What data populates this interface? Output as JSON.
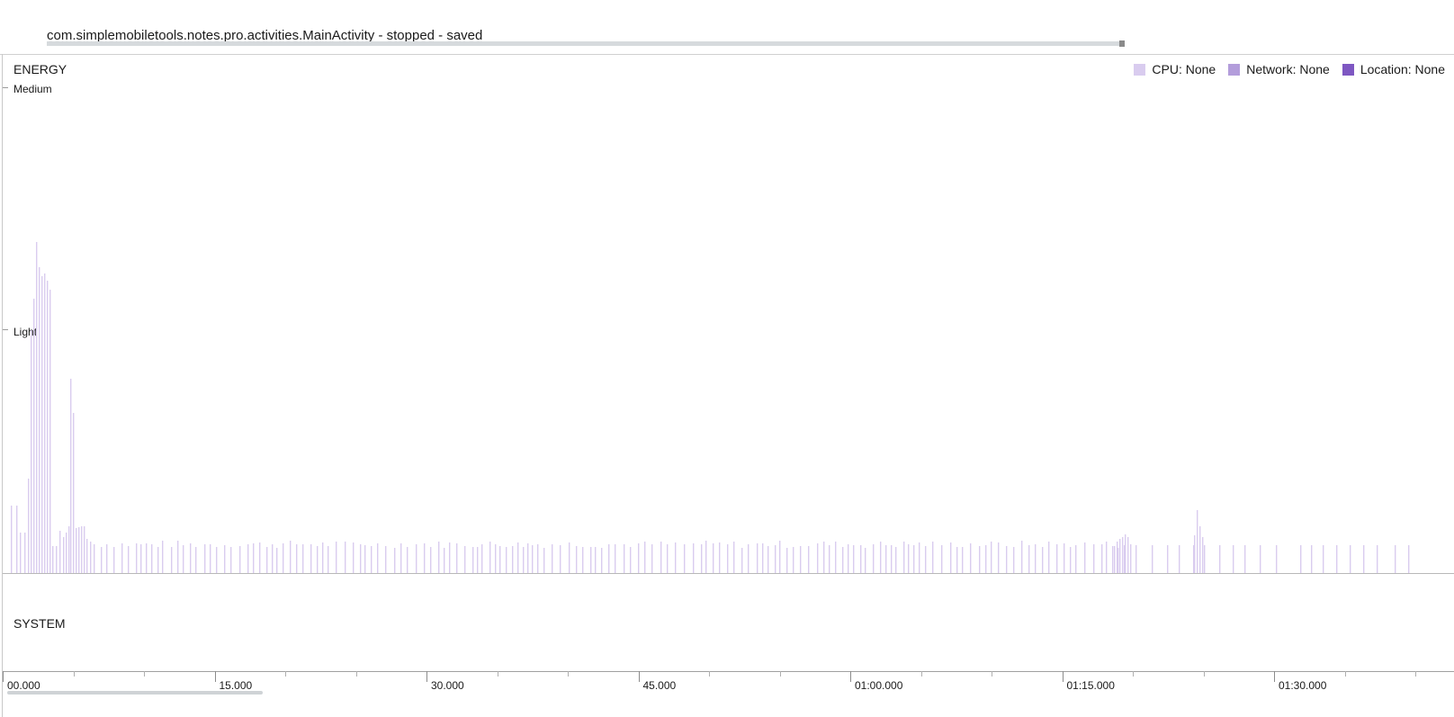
{
  "activity": {
    "label": "com.simplemobiletools.notes.pro.activities.MainActivity - stopped - saved"
  },
  "energy": {
    "title": "ENERGY",
    "levels": {
      "medium": "Medium",
      "light": "Light"
    }
  },
  "legend": {
    "cpu": "CPU: None",
    "network": "Network: None",
    "location": "Location: None"
  },
  "colors": {
    "cpu": "#d9ccef",
    "network": "#b39ddb",
    "location": "#7e57c2",
    "bars": "#d9ccef"
  },
  "system": {
    "title": "SYSTEM"
  },
  "time_axis": {
    "labels": [
      "00.000",
      "15.000",
      "30.000",
      "45.000",
      "01:00.000",
      "01:15.000",
      "01:30.000"
    ]
  },
  "chart_data": {
    "type": "bar",
    "series": [
      {
        "name": "CPU",
        "x_range": [
          0,
          100
        ],
        "peak_values": [
          {
            "x": 0.6,
            "y": 0.28
          },
          {
            "x": 1.0,
            "y": 0.28
          },
          {
            "x": 1.4,
            "y": 0.2
          },
          {
            "x": 1.8,
            "y": 0.2
          },
          {
            "x": 2.2,
            "y": 0.37
          },
          {
            "x": 2.4,
            "y": 0.72
          },
          {
            "x": 2.6,
            "y": 0.82
          },
          {
            "x": 2.8,
            "y": 0.98
          },
          {
            "x": 3.0,
            "y": 0.91
          },
          {
            "x": 3.2,
            "y": 0.9
          },
          {
            "x": 3.4,
            "y": 0.88
          },
          {
            "x": 4.7,
            "y": 0.58
          },
          {
            "x": 4.9,
            "y": 0.47
          }
        ],
        "baseline_value": 0.1
      }
    ],
    "y_levels": [
      "Light",
      "Medium"
    ]
  }
}
